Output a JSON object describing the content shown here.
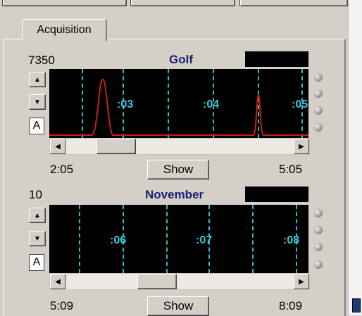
{
  "tab": {
    "label": "Acquisition"
  },
  "channels": [
    {
      "track_number": "7350",
      "title": "Golf",
      "ticks": [
        ":03",
        ":04",
        ":05"
      ],
      "start_time": "2:05",
      "end_time": "5:05",
      "show_label": "Show",
      "channel_label": "A",
      "trace_color": "#c81e1e",
      "grid_color": "#34b8c8"
    },
    {
      "track_number": "10",
      "title": "November",
      "ticks": [
        ":06",
        ":07",
        ":08"
      ],
      "start_time": "5:09",
      "end_time": "8:09",
      "show_label": "Show",
      "channel_label": "A",
      "grid_color": "#34b8c8"
    }
  ]
}
